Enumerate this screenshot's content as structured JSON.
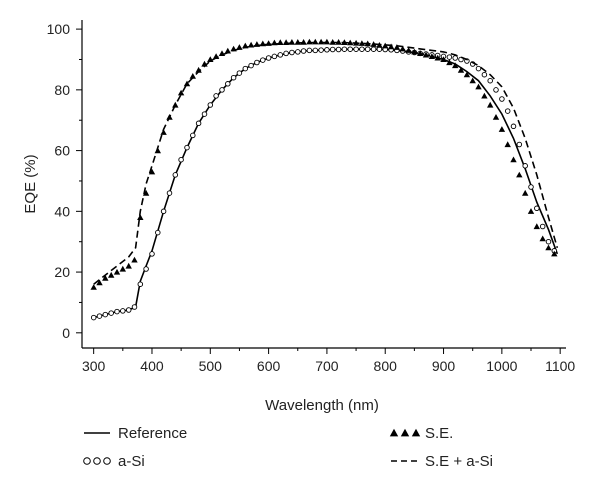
{
  "chart_data": {
    "type": "line",
    "title": "",
    "xlabel": "Wavelength (nm)",
    "ylabel": "EQE (%)",
    "xlim": [
      280,
      1110
    ],
    "ylim": [
      -5,
      103
    ],
    "xticks": [
      300,
      400,
      500,
      600,
      700,
      800,
      900,
      1000,
      1100
    ],
    "yticks": [
      0,
      20,
      40,
      60,
      80,
      100
    ],
    "grid": false,
    "legend_position": "bottom",
    "series": [
      {
        "name": "Reference",
        "style": "solid-line",
        "color": "#000000",
        "x": [
          300,
          320,
          340,
          360,
          372,
          380,
          390,
          400,
          420,
          440,
          460,
          480,
          500,
          520,
          540,
          560,
          580,
          600,
          620,
          640,
          660,
          680,
          700,
          720,
          740,
          760,
          780,
          800,
          820,
          840,
          860,
          880,
          900,
          920,
          940,
          960,
          980,
          1000,
          1020,
          1040,
          1060,
          1080,
          1095
        ],
        "y": [
          5,
          6,
          7,
          7.5,
          8.5,
          17,
          22,
          27,
          40,
          52,
          61,
          69,
          75,
          80,
          84,
          87,
          89,
          90.5,
          91.5,
          92.3,
          92.8,
          93,
          93.2,
          93.3,
          93.4,
          93.4,
          93.4,
          93.3,
          93,
          92.5,
          92,
          91,
          90,
          88.5,
          86,
          83,
          78,
          72,
          64,
          54,
          43,
          34,
          26
        ]
      },
      {
        "name": "a-Si",
        "style": "open-circles",
        "color": "#000000",
        "x": [
          300,
          310,
          320,
          330,
          340,
          350,
          360,
          370,
          380,
          390,
          400,
          410,
          420,
          430,
          440,
          450,
          460,
          470,
          480,
          490,
          500,
          510,
          520,
          530,
          540,
          550,
          560,
          570,
          580,
          590,
          600,
          610,
          620,
          630,
          640,
          650,
          660,
          670,
          680,
          690,
          700,
          710,
          720,
          730,
          740,
          750,
          760,
          770,
          780,
          790,
          800,
          810,
          820,
          830,
          840,
          850,
          860,
          870,
          880,
          890,
          900,
          910,
          920,
          930,
          940,
          950,
          960,
          970,
          980,
          990,
          1000,
          1010,
          1020,
          1030,
          1040,
          1050,
          1060,
          1070,
          1080,
          1090
        ],
        "y": [
          5,
          5.5,
          6,
          6.5,
          7,
          7.2,
          7.5,
          8.5,
          16,
          21,
          26,
          33,
          40,
          46,
          52,
          57,
          61,
          65,
          69,
          72,
          75,
          78,
          80,
          82,
          84,
          85.5,
          87,
          88,
          89,
          89.8,
          90.5,
          91,
          91.5,
          92,
          92.3,
          92.5,
          92.8,
          93,
          93,
          93.1,
          93.2,
          93.3,
          93.3,
          93.4,
          93.4,
          93.4,
          93.4,
          93.4,
          93.4,
          93.4,
          93.3,
          93.2,
          93,
          92.8,
          92.5,
          92.3,
          92,
          91.8,
          91.5,
          91.3,
          91,
          90.8,
          90.5,
          90,
          89.5,
          88.5,
          87,
          85,
          83,
          80,
          77,
          73,
          68,
          62,
          55,
          48,
          41,
          35,
          30,
          27
        ]
      },
      {
        "name": "S.E.",
        "style": "filled-triangles",
        "color": "#000000",
        "x": [
          300,
          310,
          320,
          330,
          340,
          350,
          360,
          370,
          380,
          390,
          400,
          410,
          420,
          430,
          440,
          450,
          460,
          470,
          480,
          490,
          500,
          510,
          520,
          530,
          540,
          550,
          560,
          570,
          580,
          590,
          600,
          610,
          620,
          630,
          640,
          650,
          660,
          670,
          680,
          690,
          700,
          710,
          720,
          730,
          740,
          750,
          760,
          770,
          780,
          790,
          800,
          810,
          820,
          830,
          840,
          850,
          860,
          870,
          880,
          890,
          900,
          910,
          920,
          930,
          940,
          950,
          960,
          970,
          980,
          990,
          1000,
          1010,
          1020,
          1030,
          1040,
          1050,
          1060,
          1070,
          1080,
          1090
        ],
        "y": [
          15,
          16.5,
          18,
          19,
          20,
          21,
          22,
          24,
          38,
          46,
          53,
          60,
          66,
          71,
          75,
          79,
          82,
          84.5,
          86.5,
          88.5,
          90,
          91,
          92,
          92.8,
          93.5,
          94,
          94.5,
          94.8,
          95,
          95.2,
          95.3,
          95.5,
          95.6,
          95.6,
          95.7,
          95.7,
          95.7,
          95.8,
          95.8,
          95.8,
          95.8,
          95.7,
          95.7,
          95.6,
          95.5,
          95.4,
          95.3,
          95.2,
          95,
          94.7,
          94.5,
          94.2,
          94,
          93.5,
          93,
          92.5,
          92,
          91.5,
          91,
          90.5,
          90,
          89,
          88,
          86.5,
          85,
          83,
          81,
          78,
          75,
          71,
          67,
          62,
          57,
          52,
          46,
          40,
          35,
          31,
          28,
          26
        ]
      },
      {
        "name": "S.E + a-Si",
        "style": "dashed-line",
        "color": "#000000",
        "x": [
          300,
          320,
          340,
          360,
          372,
          380,
          390,
          400,
          420,
          440,
          460,
          480,
          500,
          520,
          540,
          560,
          580,
          600,
          620,
          640,
          660,
          680,
          700,
          720,
          740,
          760,
          780,
          800,
          820,
          840,
          860,
          880,
          900,
          920,
          940,
          960,
          980,
          1000,
          1020,
          1040,
          1060,
          1080,
          1095
        ],
        "y": [
          16,
          19,
          22,
          25,
          28,
          40,
          49,
          55,
          67,
          75,
          82,
          86,
          89.5,
          91.5,
          93,
          94,
          94.6,
          95,
          95.2,
          95.4,
          95.5,
          95.6,
          95.6,
          95.6,
          95.5,
          95.3,
          95.1,
          94.8,
          94.5,
          94,
          93.5,
          93,
          92.5,
          91.5,
          90,
          88,
          85,
          81,
          74,
          64,
          52,
          38,
          28
        ]
      }
    ],
    "legend": [
      {
        "name": "Reference",
        "symbol": "solid-line"
      },
      {
        "name": "S.E.",
        "symbol": "filled-triangles"
      },
      {
        "name": "a-Si",
        "symbol": "open-circles"
      },
      {
        "name": "S.E + a-Si",
        "symbol": "dashed-line"
      }
    ]
  }
}
